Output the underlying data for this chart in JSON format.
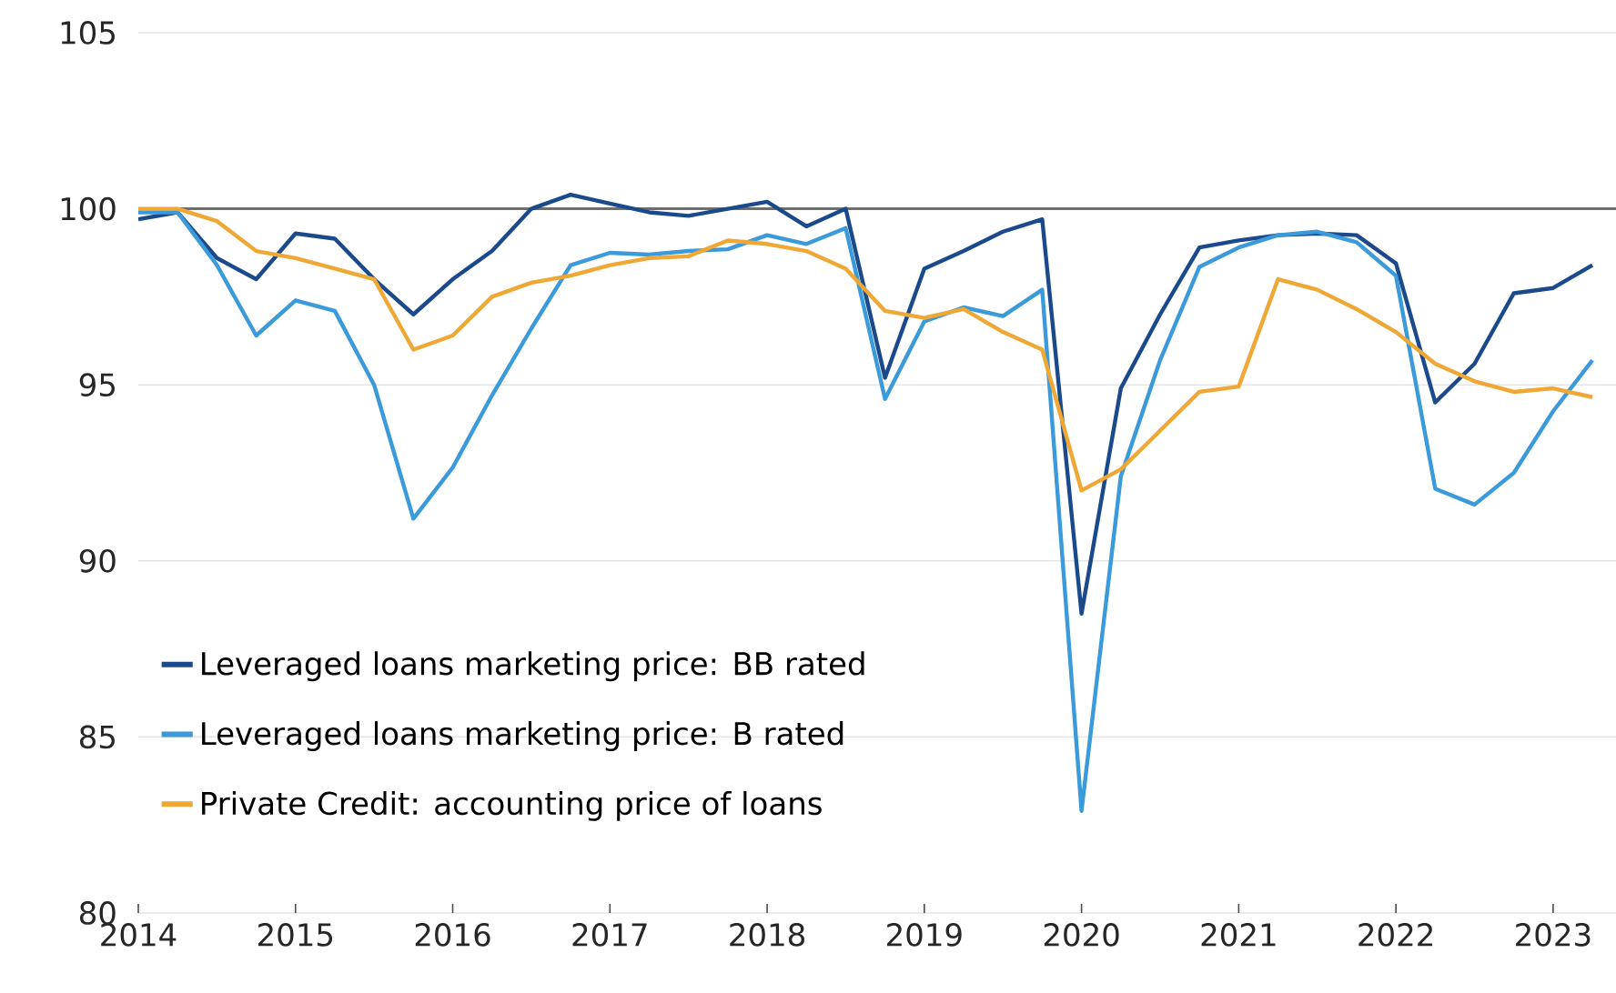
{
  "chart_data": {
    "type": "line",
    "x": [
      2014,
      2014.25,
      2014.5,
      2014.75,
      2015,
      2015.25,
      2015.5,
      2015.75,
      2016,
      2016.25,
      2016.5,
      2016.75,
      2017,
      2017.25,
      2017.5,
      2017.75,
      2018,
      2018.25,
      2018.5,
      2018.75,
      2019,
      2019.25,
      2019.5,
      2019.75,
      2020,
      2020.25,
      2020.5,
      2020.75,
      2021,
      2021.25,
      2021.5,
      2021.75,
      2022,
      2022.25,
      2022.5,
      2022.75,
      2023,
      2023.25
    ],
    "series": [
      {
        "name": "Leveraged loans marketing price: BB rated",
        "color": "#1b4a8c",
        "values": [
          99.7,
          99.9,
          98.6,
          98.0,
          99.3,
          99.15,
          98.0,
          97.0,
          98.0,
          98.8,
          100.0,
          100.4,
          100.15,
          99.9,
          99.8,
          100.0,
          100.2,
          99.5,
          100.0,
          95.2,
          98.3,
          98.8,
          99.35,
          99.7,
          88.5,
          94.9,
          97.0,
          98.9,
          99.1,
          99.25,
          99.3,
          99.25,
          98.45,
          94.5,
          95.6,
          97.6,
          97.75,
          98.4
        ]
      },
      {
        "name": "Leveraged loans marketing price: B rated",
        "color": "#3b9ad9",
        "values": [
          99.9,
          99.9,
          98.4,
          96.4,
          97.4,
          97.1,
          95.0,
          91.2,
          92.65,
          94.7,
          96.6,
          98.4,
          98.75,
          98.7,
          98.8,
          98.85,
          99.25,
          99.0,
          99.45,
          94.6,
          96.8,
          97.2,
          96.95,
          97.7,
          82.9,
          92.4,
          95.7,
          98.35,
          98.9,
          99.25,
          99.35,
          99.05,
          98.1,
          92.05,
          91.6,
          92.5,
          94.25,
          95.7
        ]
      },
      {
        "name": "Private Credit: accounting price of loans",
        "color": "#efa835",
        "values": [
          100.0,
          100.0,
          99.65,
          98.8,
          98.6,
          98.3,
          98.0,
          96.0,
          96.4,
          97.5,
          97.9,
          98.1,
          98.4,
          98.6,
          98.65,
          99.1,
          99.0,
          98.8,
          98.3,
          97.1,
          96.9,
          97.15,
          96.5,
          96.0,
          92.0,
          92.6,
          93.7,
          94.8,
          94.95,
          98.0,
          97.7,
          97.15,
          96.5,
          95.6,
          95.1,
          94.8,
          94.9,
          94.65
        ]
      }
    ],
    "xlim": [
      2014,
      2023.4
    ],
    "ylim": [
      80,
      105
    ],
    "xticks": [
      2014,
      2015,
      2016,
      2017,
      2018,
      2019,
      2020,
      2021,
      2022,
      2023
    ],
    "yticks": [
      80,
      85,
      90,
      95,
      100,
      105
    ],
    "ref_lines": [
      {
        "axis": "y",
        "value": 100,
        "color": "#6e6e6e"
      }
    ],
    "grid": "y",
    "legend": "bottom left",
    "marker": "none",
    "line_style": "solid"
  }
}
